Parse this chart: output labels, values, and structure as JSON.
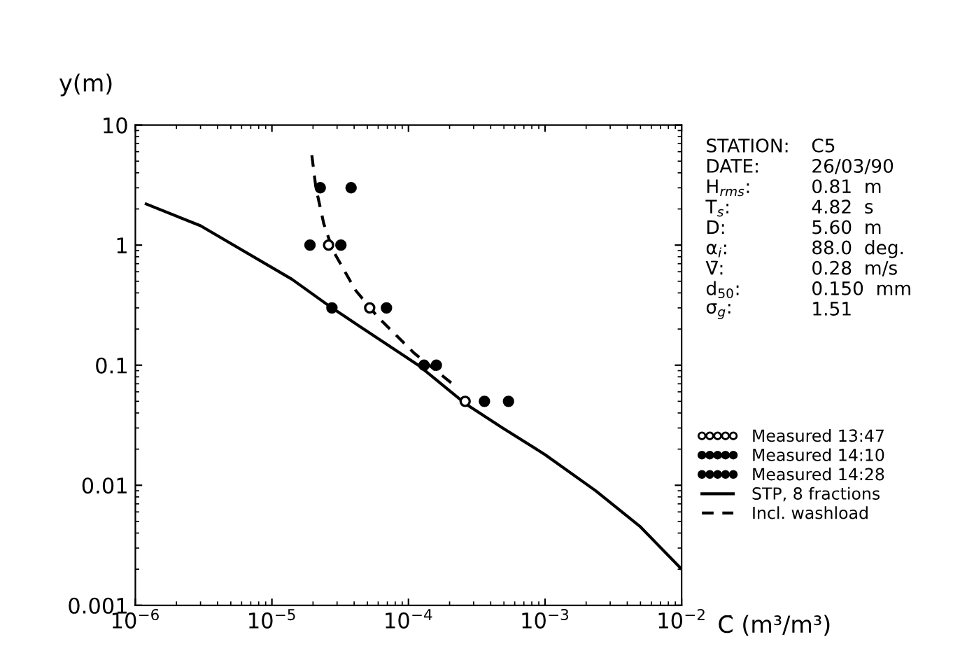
{
  "chart_data": {
    "type": "scatter",
    "xlabel": "C̄ (m³/m³)",
    "ylabel": "y(m)",
    "log": "xy",
    "xlim": [
      1e-06,
      0.01
    ],
    "ylim": [
      0.001,
      10
    ],
    "xticks": [
      {
        "value": 1e-06,
        "label": "10$^{−6}$"
      },
      {
        "value": 1e-05,
        "label": "10$^{−5}$"
      },
      {
        "value": 0.0001,
        "label": "10$^{−4}$"
      },
      {
        "value": 0.001,
        "label": "10$^{−3}$"
      },
      {
        "value": 0.01,
        "label": "10$^{−2}$"
      }
    ],
    "yticks": [
      0.001,
      0.01,
      0.1,
      1,
      10
    ],
    "grid": false,
    "legend": "right",
    "series": [
      {
        "name": "Measured 13:47",
        "type": "scatter",
        "marker": "circle",
        "color": "#ffffff",
        "x": [
          2.6e-05,
          5.2e-05,
          0.00026
        ],
        "values": [
          1,
          0.3,
          0.05
        ]
      },
      {
        "name": "Measured 14:10",
        "type": "scatter",
        "marker": "circle",
        "color": "#000000",
        "x": [
          2.26e-05,
          1.9e-05,
          2.75e-05,
          0.00013,
          0.00036
        ],
        "values": [
          3,
          1,
          0.3,
          0.1,
          0.05
        ]
      },
      {
        "name": "Measured 14:28",
        "type": "scatter",
        "marker": "circle",
        "color": "#000000",
        "x": [
          3.8e-05,
          3.2e-05,
          6.9e-05,
          0.00016,
          0.00054
        ],
        "values": [
          3,
          1,
          0.3,
          0.1,
          0.05
        ]
      },
      {
        "name": "STP, 8 fractions",
        "type": "line",
        "line_style": "solid",
        "color": "#000000",
        "x": [
          1.2e-06,
          3e-06,
          1.4e-05,
          2.75e-05,
          0.000118,
          0.00026,
          0.00049,
          0.001,
          0.00235,
          0.005,
          0.01
        ],
        "values": [
          2.2,
          1.45,
          0.52,
          0.3,
          0.1,
          0.048,
          0.03,
          0.018,
          0.009,
          0.0045,
          0.002
        ]
      },
      {
        "name": "Incl. washload",
        "type": "line",
        "line_style": "dashed",
        "color": "#000000",
        "x": [
          1.96e-05,
          2.1e-05,
          2.4e-05,
          2.8e-05,
          4.1e-05,
          6e-05,
          0.00011,
          0.00021
        ],
        "values": [
          5.6,
          3,
          1.5,
          0.9,
          0.42,
          0.25,
          0.126,
          0.07
        ]
      }
    ],
    "annotations": [
      "STATION:",
      "C5",
      "DATE:",
      "26/03/90",
      "H$_{rms}$:",
      "0.81  m",
      "T$_{s}$:",
      "4.82  s",
      "D:",
      "5.60  m",
      "α$_{i}$:",
      "88.0  deg.",
      "V̄:",
      "0.28  m/s",
      "d$_{50}$:",
      "0.150  mm",
      "σ$_{g}$:",
      "1.51"
    ]
  }
}
